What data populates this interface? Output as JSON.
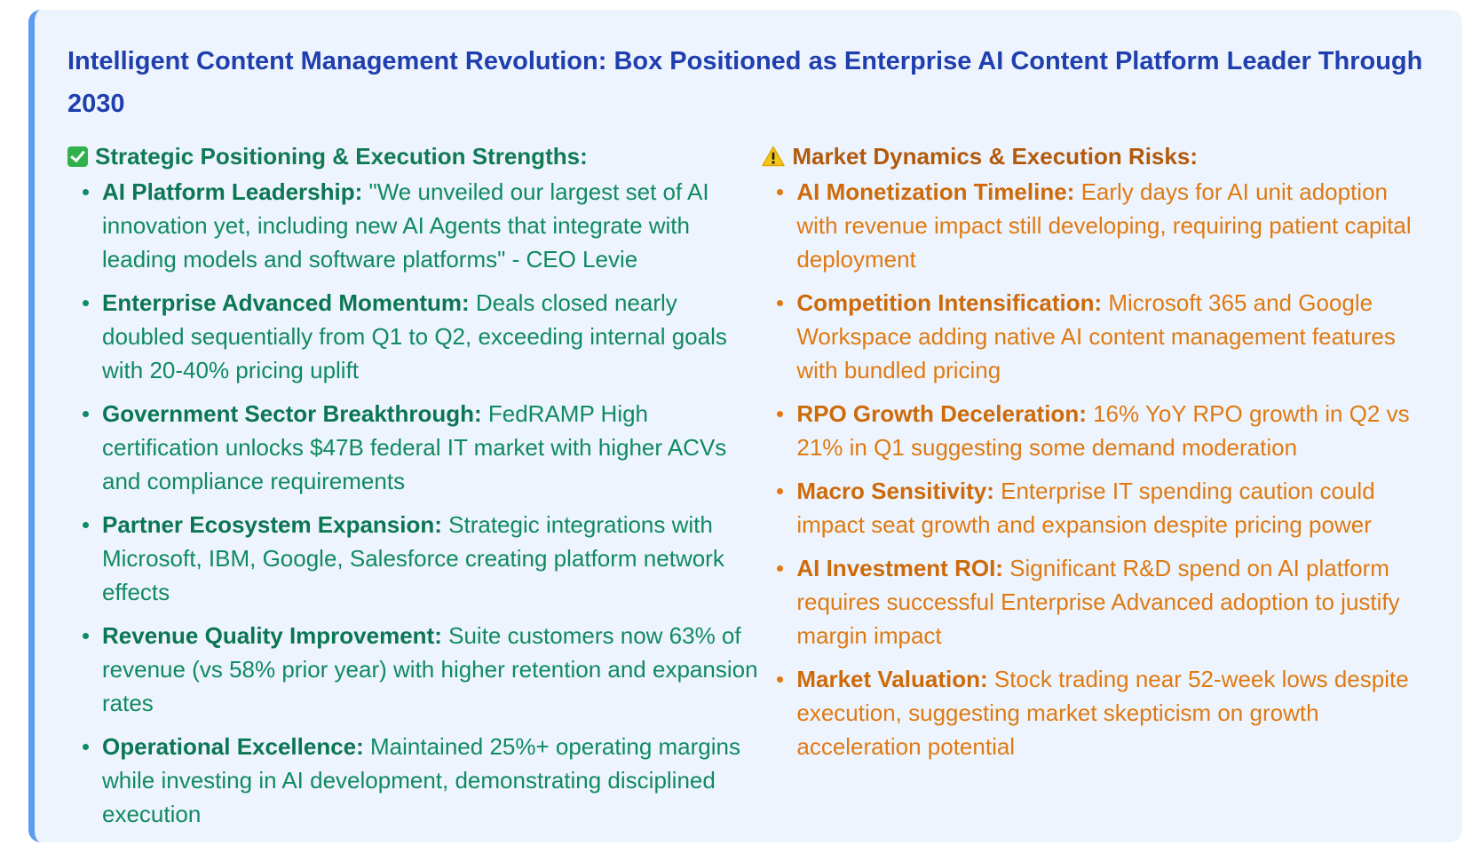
{
  "title": "Intelligent Content Management Revolution: Box Positioned as Enterprise AI Content Platform Leader Through 2030",
  "colors": {
    "title": "#1f3fae",
    "strengths": "#0f8a61",
    "risks": "#df7a12",
    "card_background": "#eef4fd",
    "accent_border": "#5b9bf0"
  },
  "strengths": {
    "icon": "check-mark-icon",
    "heading": "Strategic Positioning & Execution Strengths:",
    "items": [
      {
        "label": "AI Platform Leadership:",
        "text": " \"We unveiled our largest set of AI innovation yet, including new AI Agents that integrate with leading models and software platforms\" - CEO Levie"
      },
      {
        "label": "Enterprise Advanced Momentum:",
        "text": " Deals closed nearly doubled sequentially from Q1 to Q2, exceeding internal goals with 20-40% pricing uplift"
      },
      {
        "label": "Government Sector Breakthrough:",
        "text": " FedRAMP High certification unlocks $47B federal IT market with higher ACVs and compliance requirements"
      },
      {
        "label": "Partner Ecosystem Expansion:",
        "text": " Strategic integrations with Microsoft, IBM, Google, Salesforce creating platform network effects"
      },
      {
        "label": "Revenue Quality Improvement:",
        "text": " Suite customers now 63% of revenue (vs 58% prior year) with higher retention and expansion rates"
      },
      {
        "label": "Operational Excellence:",
        "text": " Maintained 25%+ operating margins while investing in AI development, demonstrating disciplined execution"
      }
    ]
  },
  "risks": {
    "icon": "warning-icon",
    "heading": "Market Dynamics & Execution Risks:",
    "items": [
      {
        "label": "AI Monetization Timeline:",
        "text": " Early days for AI unit adoption with revenue impact still developing, requiring patient capital deployment"
      },
      {
        "label": "Competition Intensification:",
        "text": " Microsoft 365 and Google Workspace adding native AI content management features with bundled pricing"
      },
      {
        "label": "RPO Growth Deceleration:",
        "text": " 16% YoY RPO growth in Q2 vs 21% in Q1 suggesting some demand moderation"
      },
      {
        "label": "Macro Sensitivity:",
        "text": " Enterprise IT spending caution could impact seat growth and expansion despite pricing power"
      },
      {
        "label": "AI Investment ROI:",
        "text": " Significant R&D spend on AI platform requires successful Enterprise Advanced adoption to justify margin impact"
      },
      {
        "label": "Market Valuation:",
        "text": " Stock trading near 52-week lows despite execution, suggesting market skepticism on growth acceleration potential"
      }
    ]
  }
}
